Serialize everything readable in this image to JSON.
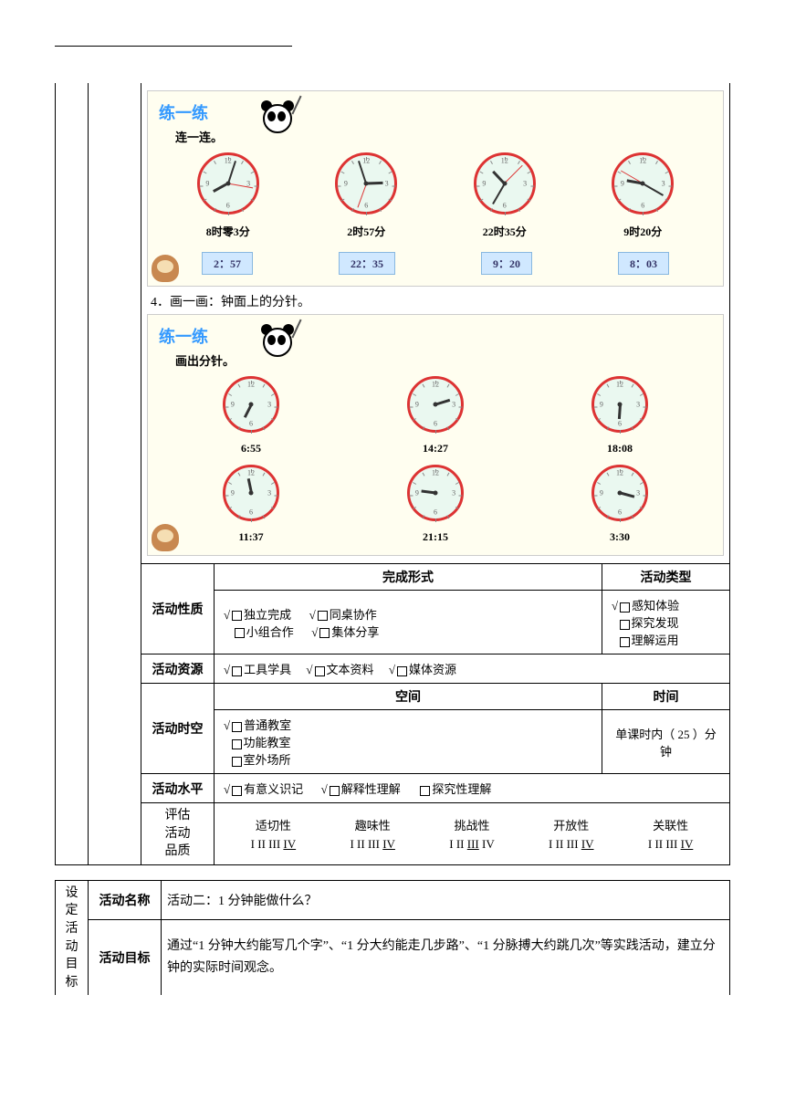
{
  "hr_width": 260,
  "exercise1": {
    "title": "练一练",
    "subtitle": "连一连。",
    "clocks": [
      {
        "hour_angle": 241,
        "min_angle": 18,
        "sec_angle": 100,
        "label": "8时零3分"
      },
      {
        "hour_angle": 88,
        "min_angle": 342,
        "sec_angle": 200,
        "label": "2时57分"
      },
      {
        "hour_angle": 317,
        "min_angle": 210,
        "sec_angle": 45,
        "label": "22时35分"
      },
      {
        "hour_angle": 280,
        "min_angle": 120,
        "sec_angle": 300,
        "label": "9时20分"
      }
    ],
    "digitals": [
      "2：57",
      "22：35",
      "9：20",
      "8：03"
    ]
  },
  "line4": "4．画一画：钟面上的分针。",
  "exercise2": {
    "title": "练一练",
    "subtitle": "画出分针。",
    "row1": [
      {
        "hour_angle": 207,
        "label": "6:55"
      },
      {
        "hour_angle": 73,
        "label": "14:27"
      },
      {
        "hour_angle": 184,
        "label": "18:08"
      }
    ],
    "row2": [
      {
        "hour_angle": 348,
        "label": "11:37"
      },
      {
        "hour_angle": 277,
        "label": "21:15"
      },
      {
        "hour_angle": 105,
        "label": "3:30"
      }
    ]
  },
  "table": {
    "nature_label": "活动性质",
    "complete_header": "完成形式",
    "type_header": "活动类型",
    "complete_opts": {
      "a": "独立完成",
      "b": "同桌协作",
      "c": "小组合作",
      "d": "集体分享"
    },
    "type_opts": {
      "a": "感知体验",
      "b": "探究发现",
      "c": "理解运用"
    },
    "resource_label": "活动资源",
    "resource_opts": {
      "a": "工具学具",
      "b": "文本资料",
      "c": "媒体资源"
    },
    "space_header": "空间",
    "time_header": "时间",
    "spacetime_label": "活动时空",
    "space_opts": {
      "a": "普通教室",
      "b": "功能教室",
      "c": "室外场所"
    },
    "time_text_pre": "单课时内（",
    "time_value": "25",
    "time_text_post": "）分钟",
    "level_label": "活动水平",
    "level_opts": {
      "a": "有意义识记",
      "b": "解释性理解",
      "c": "探究性理解"
    }
  },
  "quality": {
    "side_label": "评估\n活动\n品质",
    "items": [
      {
        "name": "适切性",
        "sel": 4
      },
      {
        "name": "趣味性",
        "sel": 4
      },
      {
        "name": "挑战性",
        "sel": 3
      },
      {
        "name": "开放性",
        "sel": 4
      },
      {
        "name": "关联性",
        "sel": 4
      }
    ]
  },
  "table2": {
    "side_label": "设定\n活动\n目标",
    "name_label": "活动名称",
    "name_value": "活动二：1 分钟能做什么？",
    "goal_label": "活动目标",
    "goal_value": "通过“1 分钟大约能写几个字”、“1 分大约能走几步路”、“1 分脉搏大约跳几次”等实践活动，建立分钟的实际时间观念。"
  },
  "colors": {
    "clock_border": "#d33",
    "clock_bg": "#eaf8f0",
    "ex_title": "#3399ff",
    "digital_bg": "#d0e8ff",
    "ex_bg": "#fffef0"
  }
}
